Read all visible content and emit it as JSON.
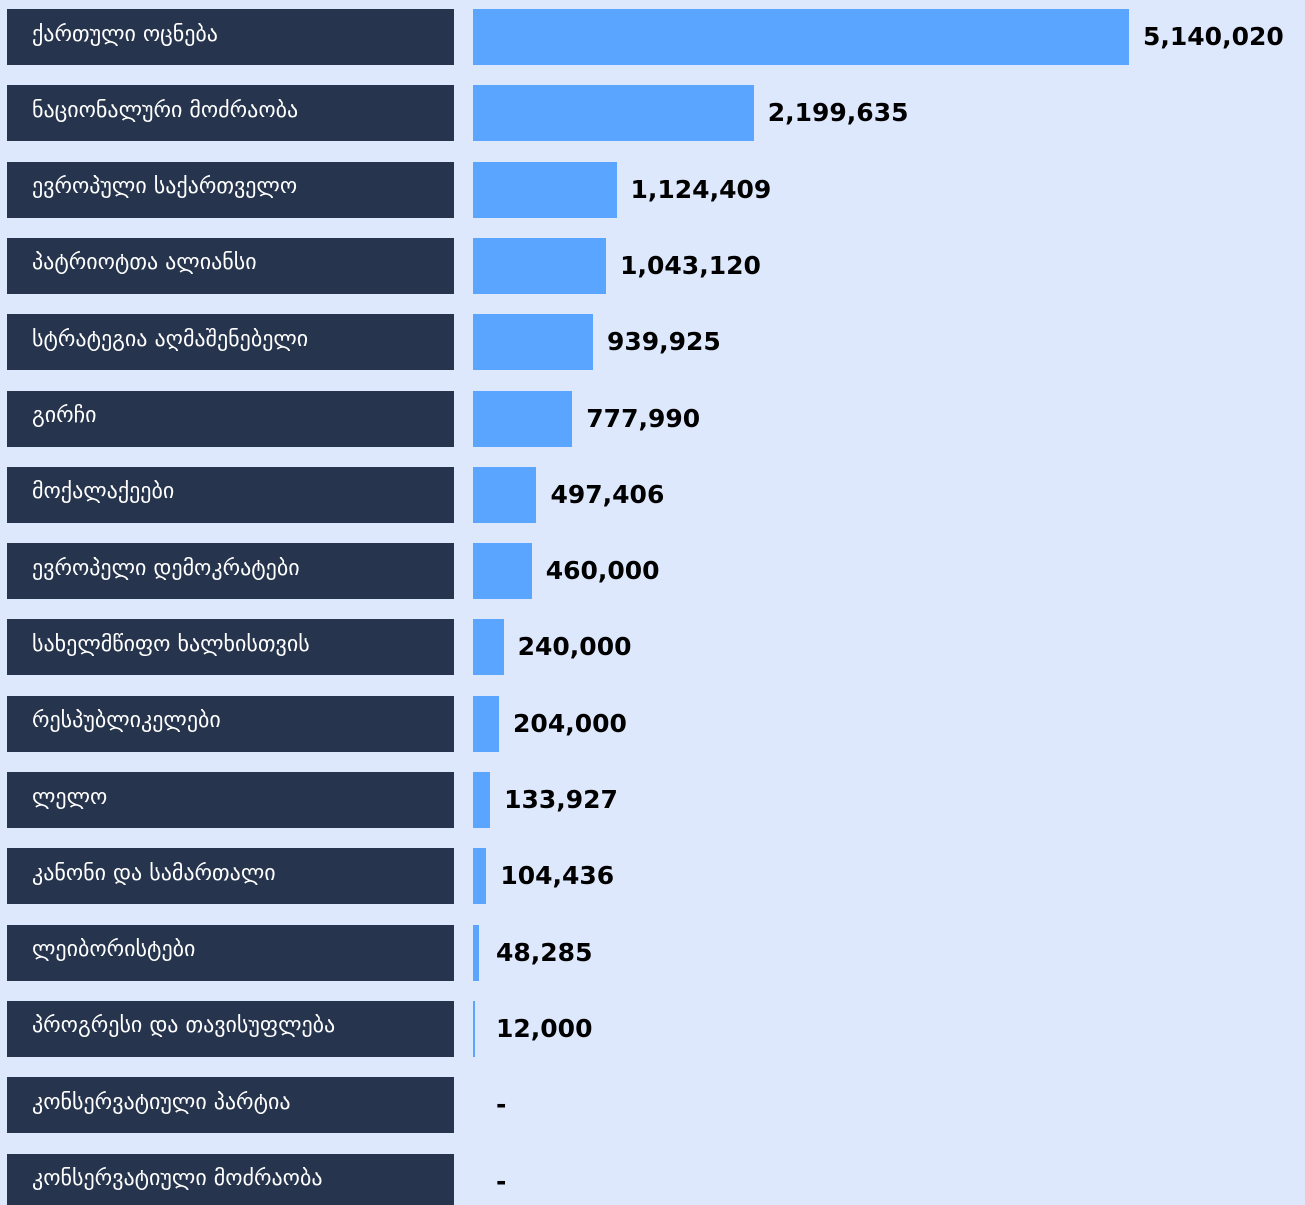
{
  "colors": {
    "background": "#dde8fc",
    "label_box": "#26354d",
    "label_text": "#ffffff",
    "bar": "#5aa5ff",
    "value_text": "#000000"
  },
  "chart_data": {
    "type": "bar",
    "orientation": "horizontal",
    "categories": [
      "ქართული ოცნება",
      "ნაციონალური მოძრაობა",
      "ევროპული საქართველო",
      "პატრიოტთა ალიანსი",
      "სტრატეგია აღმაშენებელი",
      "გირჩი",
      "მოქალაქეები",
      "ევროპელი დემოკრატები",
      "სახელმწიფო ხალხისთვის",
      "რესპუბლიკელები",
      "ლელო",
      "კანონი და სამართალი",
      "ლეიბორისტები",
      "პროგრესი და თავისუფლება",
      "კონსერვატიული პარტია",
      "კონსერვატიული მოძრაობა"
    ],
    "values": [
      5140020,
      2199635,
      1124409,
      1043120,
      939925,
      777990,
      497406,
      460000,
      240000,
      204000,
      133927,
      104436,
      48285,
      12000,
      null,
      null
    ],
    "value_labels": [
      "5,140,020",
      "2,199,635",
      "1,124,409",
      "1,043,120",
      "939,925",
      "777,990",
      "497,406",
      "460,000",
      "240,000",
      "204,000",
      "133,927",
      "104,436",
      "48,285",
      "12,000",
      "-",
      "-"
    ],
    "xlim": [
      0,
      5140020
    ],
    "grid": false,
    "legend": "none"
  }
}
